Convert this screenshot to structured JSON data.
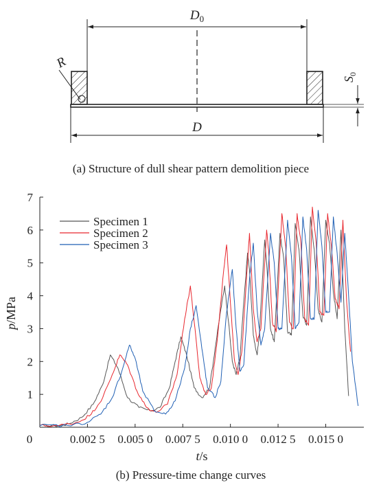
{
  "diagram": {
    "labels": {
      "d0_main": "D",
      "d0_sub": "0",
      "d": "D",
      "r": "R",
      "s0_main": "S",
      "s0_sub": "0"
    }
  },
  "captions": {
    "a": "(a) Structure of dull shear pattern demolition piece",
    "b": "(b) Pressure-time change curves"
  },
  "chart_data": {
    "type": "line",
    "xlabel_main": "t",
    "xlabel_unit": "/s",
    "ylabel_main": "p",
    "ylabel_unit": "/MPa",
    "xlim": [
      0,
      0.017
    ],
    "ylim": [
      0,
      7
    ],
    "x_ticks": [
      {
        "value": 0,
        "label": "0"
      },
      {
        "value": 0.0025,
        "label": "0.002 5"
      },
      {
        "value": 0.005,
        "label": "0.005 0"
      },
      {
        "value": 0.0075,
        "label": "0.007 5"
      },
      {
        "value": 0.01,
        "label": "0.010 0"
      },
      {
        "value": 0.0125,
        "label": "0.012 5"
      },
      {
        "value": 0.015,
        "label": "0.015 0"
      }
    ],
    "y_ticks": [
      {
        "value": 1,
        "label": "1"
      },
      {
        "value": 2,
        "label": "2"
      },
      {
        "value": 3,
        "label": "3"
      },
      {
        "value": 4,
        "label": "4"
      },
      {
        "value": 5,
        "label": "5"
      },
      {
        "value": 6,
        "label": "6"
      },
      {
        "value": 7,
        "label": "7"
      }
    ],
    "legend_position": "top-left",
    "series": [
      {
        "name": "Specimen 1",
        "color": "#555555",
        "points": [
          [
            0,
            0.05
          ],
          [
            0.001,
            0.05
          ],
          [
            0.0015,
            0.1
          ],
          [
            0.0022,
            0.3
          ],
          [
            0.0028,
            0.7
          ],
          [
            0.0033,
            1.3
          ],
          [
            0.0037,
            2.2
          ],
          [
            0.0041,
            1.8
          ],
          [
            0.0046,
            0.9
          ],
          [
            0.0052,
            0.6
          ],
          [
            0.0058,
            0.5
          ],
          [
            0.0063,
            0.6
          ],
          [
            0.0068,
            1.2
          ],
          [
            0.0071,
            2.0
          ],
          [
            0.0074,
            2.75
          ],
          [
            0.0077,
            2.2
          ],
          [
            0.0081,
            1.2
          ],
          [
            0.0085,
            0.9
          ],
          [
            0.0089,
            1.2
          ],
          [
            0.0092,
            2.4
          ],
          [
            0.0095,
            3.6
          ],
          [
            0.0097,
            4.3
          ],
          [
            0.0099,
            3.2
          ],
          [
            0.0101,
            2.0
          ],
          [
            0.0103,
            1.6
          ],
          [
            0.0105,
            2.1
          ],
          [
            0.0107,
            3.8
          ],
          [
            0.0109,
            5.3
          ],
          [
            0.011,
            4.8
          ],
          [
            0.0112,
            2.8
          ],
          [
            0.0114,
            2.2
          ],
          [
            0.0115,
            2.7
          ],
          [
            0.0118,
            5.7
          ],
          [
            0.0119,
            5.0
          ],
          [
            0.0121,
            3.0
          ],
          [
            0.0123,
            2.6
          ],
          [
            0.0126,
            5.9
          ],
          [
            0.0128,
            5.1
          ],
          [
            0.013,
            2.9
          ],
          [
            0.0132,
            2.8
          ],
          [
            0.0134,
            6.2
          ],
          [
            0.0136,
            5.4
          ],
          [
            0.0138,
            3.4
          ],
          [
            0.014,
            3.1
          ],
          [
            0.0142,
            6.4
          ],
          [
            0.0144,
            5.4
          ],
          [
            0.0146,
            3.6
          ],
          [
            0.0148,
            3.2
          ],
          [
            0.015,
            6.3
          ],
          [
            0.0152,
            5.6
          ],
          [
            0.0154,
            4.1
          ],
          [
            0.0156,
            3.3
          ],
          [
            0.0158,
            6.0
          ],
          [
            0.016,
            3.0
          ],
          [
            0.0162,
            0.95
          ]
        ]
      },
      {
        "name": "Specimen 2",
        "color": "#e8262d",
        "points": [
          [
            0,
            0.05
          ],
          [
            0.001,
            0.05
          ],
          [
            0.002,
            0.15
          ],
          [
            0.0027,
            0.4
          ],
          [
            0.0033,
            0.9
          ],
          [
            0.0038,
            1.6
          ],
          [
            0.0042,
            2.2
          ],
          [
            0.0046,
            1.9
          ],
          [
            0.0051,
            1.1
          ],
          [
            0.0056,
            0.6
          ],
          [
            0.0061,
            0.45
          ],
          [
            0.0067,
            0.7
          ],
          [
            0.0072,
            1.6
          ],
          [
            0.0076,
            3.3
          ],
          [
            0.0079,
            4.3
          ],
          [
            0.0081,
            3.2
          ],
          [
            0.0084,
            1.5
          ],
          [
            0.0087,
            1.0
          ],
          [
            0.009,
            1.2
          ],
          [
            0.0093,
            2.6
          ],
          [
            0.0096,
            4.5
          ],
          [
            0.0098,
            5.55
          ],
          [
            0.01,
            3.8
          ],
          [
            0.0102,
            2.1
          ],
          [
            0.0104,
            1.6
          ],
          [
            0.0106,
            2.3
          ],
          [
            0.0109,
            5.0
          ],
          [
            0.011,
            5.9
          ],
          [
            0.0112,
            3.6
          ],
          [
            0.0114,
            2.6
          ],
          [
            0.0116,
            3.0
          ],
          [
            0.0119,
            6.0
          ],
          [
            0.012,
            5.4
          ],
          [
            0.0122,
            3.2
          ],
          [
            0.0124,
            2.9
          ],
          [
            0.0127,
            6.5
          ],
          [
            0.0129,
            5.5
          ],
          [
            0.0131,
            3.2
          ],
          [
            0.0133,
            3.0
          ],
          [
            0.0135,
            6.5
          ],
          [
            0.0137,
            5.6
          ],
          [
            0.0139,
            3.3
          ],
          [
            0.0141,
            3.1
          ],
          [
            0.0143,
            6.7
          ],
          [
            0.0145,
            5.6
          ],
          [
            0.0147,
            3.5
          ],
          [
            0.0149,
            3.4
          ],
          [
            0.0151,
            6.5
          ],
          [
            0.0153,
            5.5
          ],
          [
            0.0155,
            3.9
          ],
          [
            0.0157,
            3.6
          ],
          [
            0.0159,
            6.3
          ],
          [
            0.0161,
            3.8
          ],
          [
            0.0163,
            2.3
          ]
        ]
      },
      {
        "name": "Specimen 3",
        "color": "#1f5fb4",
        "points": [
          [
            0,
            0.05
          ],
          [
            0.0015,
            0.05
          ],
          [
            0.0025,
            0.15
          ],
          [
            0.0032,
            0.4
          ],
          [
            0.0038,
            0.9
          ],
          [
            0.0043,
            1.7
          ],
          [
            0.0047,
            2.5
          ],
          [
            0.005,
            2.1
          ],
          [
            0.0054,
            1.1
          ],
          [
            0.006,
            0.5
          ],
          [
            0.0066,
            0.4
          ],
          [
            0.0071,
            0.8
          ],
          [
            0.0076,
            1.8
          ],
          [
            0.0079,
            3.0
          ],
          [
            0.0082,
            3.7
          ],
          [
            0.0085,
            2.4
          ],
          [
            0.0088,
            1.2
          ],
          [
            0.0092,
            0.9
          ],
          [
            0.0095,
            1.4
          ],
          [
            0.0098,
            3.5
          ],
          [
            0.0101,
            4.8
          ],
          [
            0.0103,
            3.0
          ],
          [
            0.0105,
            1.7
          ],
          [
            0.0107,
            1.9
          ],
          [
            0.011,
            4.5
          ],
          [
            0.0112,
            5.6
          ],
          [
            0.0114,
            3.6
          ],
          [
            0.0116,
            2.5
          ],
          [
            0.0118,
            3.0
          ],
          [
            0.0121,
            5.9
          ],
          [
            0.0123,
            5.0
          ],
          [
            0.0125,
            3.0
          ],
          [
            0.0127,
            3.0
          ],
          [
            0.013,
            6.3
          ],
          [
            0.0132,
            5.2
          ],
          [
            0.0134,
            3.0
          ],
          [
            0.0136,
            3.2
          ],
          [
            0.0138,
            6.4
          ],
          [
            0.014,
            5.4
          ],
          [
            0.0142,
            3.3
          ],
          [
            0.0144,
            3.3
          ],
          [
            0.0146,
            6.6
          ],
          [
            0.0148,
            5.5
          ],
          [
            0.015,
            3.5
          ],
          [
            0.0152,
            3.5
          ],
          [
            0.0154,
            6.4
          ],
          [
            0.0156,
            5.3
          ],
          [
            0.0158,
            3.8
          ],
          [
            0.016,
            5.9
          ],
          [
            0.0162,
            4.0
          ],
          [
            0.0164,
            2.0
          ],
          [
            0.0167,
            0.65
          ]
        ]
      }
    ]
  }
}
